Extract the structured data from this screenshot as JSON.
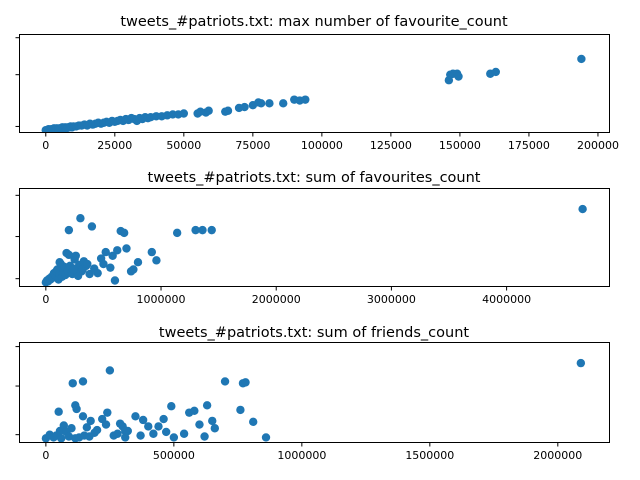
{
  "figure": {
    "background": "#ffffff",
    "point_color": "#1f77b4"
  },
  "chart_data": [
    {
      "type": "scatter",
      "title": "tweets_#patriots.txt: max number of favourite_count",
      "xlabel": "",
      "ylabel": "",
      "xlim": [
        -9700,
        204000
      ],
      "ylim": [
        -2,
        104
      ],
      "x_ticks": [
        0,
        25000,
        50000,
        75000,
        100000,
        125000,
        150000,
        175000,
        200000
      ],
      "x_tick_labels": [
        "0",
        "25000",
        "50000",
        "75000",
        "100000",
        "125000",
        "150000",
        "175000",
        "200000"
      ],
      "y_ticks": [
        4,
        60,
        100
      ],
      "y_tick_labels": [
        "",
        "",
        ""
      ],
      "grid": false,
      "legend": "none",
      "series": [
        {
          "x": [
            0,
            500,
            1000,
            1500,
            2000,
            2500,
            3000,
            3500,
            4000,
            4500,
            5000,
            5500,
            6000,
            6500,
            7000,
            7500,
            8000,
            8500,
            9000,
            9500,
            10000,
            11000,
            12000,
            13000,
            14000,
            15000,
            16000,
            17000,
            18000,
            19000,
            20000,
            21000,
            22000,
            23000,
            24000,
            25000,
            26000,
            27000,
            28000,
            29000,
            30000,
            31000,
            32000,
            33000,
            34000,
            35000,
            36000,
            37000,
            38000,
            40000,
            42000,
            44000,
            46000,
            48000,
            50000,
            55000,
            56000,
            58000,
            59000,
            65000,
            66000,
            70000,
            72000,
            75000,
            77000,
            78000,
            81000,
            86000,
            90000,
            92000,
            94000,
            146000,
            146500,
            147500,
            149000,
            149500,
            161000,
            163000,
            194000
          ],
          "y": [
            0,
            0,
            1,
            0,
            1,
            1,
            2,
            1,
            2,
            1,
            2,
            2,
            3,
            2,
            3,
            2,
            3,
            3,
            4,
            3,
            4,
            4,
            5,
            5,
            6,
            5,
            7,
            6,
            7,
            8,
            7,
            8,
            9,
            8,
            10,
            9,
            10,
            11,
            10,
            12,
            11,
            13,
            12,
            10,
            13,
            12,
            14,
            13,
            14,
            15,
            15,
            16,
            17,
            17,
            18,
            18,
            20,
            19,
            21,
            20,
            21,
            24,
            25,
            27,
            30,
            29,
            29,
            29,
            33,
            32,
            33,
            54,
            60,
            61,
            61,
            58,
            61,
            63,
            77
          ]
        }
      ]
    },
    {
      "type": "scatter",
      "title": "tweets_#patriots.txt: sum of favourites_count",
      "xlabel": "",
      "ylabel": "",
      "xlim": [
        -233000,
        4889000
      ],
      "ylim": [
        -4,
        103
      ],
      "x_ticks": [
        0,
        1000000,
        2000000,
        3000000,
        4000000
      ],
      "x_tick_labels": [
        "0",
        "1000000",
        "2000000",
        "3000000",
        "4000000"
      ],
      "y_ticks": [
        4,
        50,
        95
      ],
      "y_tick_labels": [
        "",
        "",
        ""
      ],
      "grid": false,
      "legend": "none",
      "series": [
        {
          "x": [
            0,
            10000,
            20000,
            30000,
            40000,
            50000,
            60000,
            70000,
            80000,
            90000,
            100000,
            110000,
            120000,
            130000,
            140000,
            150000,
            160000,
            170000,
            180000,
            190000,
            200000,
            210000,
            220000,
            230000,
            240000,
            250000,
            260000,
            270000,
            280000,
            290000,
            300000,
            310000,
            320000,
            330000,
            350000,
            380000,
            400000,
            420000,
            450000,
            480000,
            500000,
            520000,
            560000,
            580000,
            600000,
            620000,
            650000,
            680000,
            700000,
            740000,
            760000,
            800000,
            920000,
            960000,
            1140000,
            1300000,
            1360000,
            1440000,
            4660000,
            240000,
            120000,
            200000,
            360000
          ],
          "y": [
            0,
            2,
            1,
            4,
            3,
            6,
            5,
            10,
            8,
            12,
            14,
            3,
            9,
            20,
            6,
            11,
            17,
            8,
            32,
            13,
            57,
            18,
            10,
            9,
            15,
            25,
            29,
            11,
            7,
            19,
            70,
            12,
            14,
            23,
            18,
            9,
            61,
            15,
            10,
            26,
            20,
            33,
            16,
            29,
            2,
            35,
            56,
            54,
            37,
            12,
            14,
            22,
            33,
            24,
            54,
            57,
            57,
            57,
            80,
            14,
            22,
            30,
            20
          ]
        }
      ]
    },
    {
      "type": "scatter",
      "title": "tweets_#patriots.txt: sum of friends_count",
      "xlabel": "",
      "ylabel": "",
      "xlim": [
        -105000,
        2200000
      ],
      "ylim": [
        -4,
        105
      ],
      "x_ticks": [
        0,
        500000,
        1000000,
        1500000,
        2000000
      ],
      "x_tick_labels": [
        "0",
        "500000",
        "1000000",
        "1500000",
        "2000000"
      ],
      "y_ticks": [
        4,
        57,
        100
      ],
      "y_tick_labels": [
        "",
        "",
        ""
      ],
      "grid": false,
      "legend": "none",
      "series": [
        {
          "x": [
            0,
            15000,
            30000,
            40000,
            55000,
            60000,
            70000,
            80000,
            90000,
            100000,
            105000,
            115000,
            120000,
            130000,
            145000,
            150000,
            160000,
            175000,
            190000,
            200000,
            220000,
            235000,
            250000,
            265000,
            280000,
            290000,
            300000,
            310000,
            320000,
            350000,
            370000,
            380000,
            400000,
            420000,
            440000,
            460000,
            470000,
            490000,
            500000,
            540000,
            560000,
            580000,
            600000,
            620000,
            630000,
            650000,
            660000,
            700000,
            760000,
            770000,
            780000,
            810000,
            860000,
            2090000,
            115000,
            145000,
            240000,
            310000,
            170000,
            50000
          ],
          "y": [
            0,
            4,
            1,
            3,
            8,
            0,
            14,
            7,
            2,
            11,
            60,
            0,
            32,
            1,
            24,
            3,
            12,
            19,
            6,
            9,
            21,
            15,
            74,
            3,
            5,
            16,
            13,
            1,
            8,
            24,
            3,
            20,
            13,
            5,
            13,
            21,
            7,
            35,
            1,
            5,
            28,
            30,
            15,
            2,
            36,
            19,
            11,
            62,
            31,
            60,
            61,
            18,
            1,
            82,
            36,
            62,
            28,
            8,
            2,
            29
          ]
        }
      ]
    }
  ]
}
